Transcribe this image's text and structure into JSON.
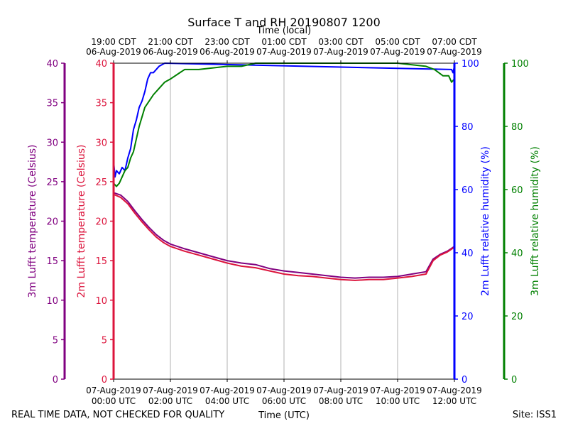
{
  "chart_data": {
    "type": "line",
    "title": "Surface T and RH 20190807 1200",
    "top_xlabel": "Time (local)",
    "xlabel": "Time (UTC)",
    "footer_left": "REAL TIME DATA, NOT CHECKED FOR QUALITY",
    "footer_right": "Site: ISS1",
    "xlim": [
      0,
      12
    ],
    "top_ticks": [
      {
        "x": 0,
        "line1": "19:00 CDT",
        "line2": "06-Aug-2019"
      },
      {
        "x": 2,
        "line1": "21:00 CDT",
        "line2": "06-Aug-2019"
      },
      {
        "x": 4,
        "line1": "23:00 CDT",
        "line2": "06-Aug-2019"
      },
      {
        "x": 6,
        "line1": "01:00 CDT",
        "line2": "07-Aug-2019"
      },
      {
        "x": 8,
        "line1": "03:00 CDT",
        "line2": "07-Aug-2019"
      },
      {
        "x": 10,
        "line1": "05:00 CDT",
        "line2": "07-Aug-2019"
      },
      {
        "x": 12,
        "line1": "07:00 CDT",
        "line2": "07-Aug-2019"
      }
    ],
    "bottom_ticks": [
      {
        "x": 0,
        "line1": "07-Aug-2019",
        "line2": "00:00 UTC"
      },
      {
        "x": 2,
        "line1": "07-Aug-2019",
        "line2": "02:00 UTC"
      },
      {
        "x": 4,
        "line1": "07-Aug-2019",
        "line2": "04:00 UTC"
      },
      {
        "x": 6,
        "line1": "07-Aug-2019",
        "line2": "06:00 UTC"
      },
      {
        "x": 8,
        "line1": "07-Aug-2019",
        "line2": "08:00 UTC"
      },
      {
        "x": 10,
        "line1": "07-Aug-2019",
        "line2": "10:00 UTC"
      },
      {
        "x": 12,
        "line1": "07-Aug-2019",
        "line2": "12:00 UTC"
      }
    ],
    "axes": {
      "t3m": {
        "label": "3m Lufft temperature (Celsius)",
        "ylim": [
          0,
          40
        ],
        "ticks": [
          0,
          5,
          10,
          15,
          20,
          25,
          30,
          35,
          40
        ],
        "color": "#800080"
      },
      "t2m": {
        "label": "2m Lufft temperature (Celsius)",
        "ylim": [
          0,
          40
        ],
        "ticks": [
          0,
          5,
          10,
          15,
          20,
          25,
          30,
          35,
          40
        ],
        "color": "#dc143c"
      },
      "rh2m": {
        "label": "2m Lufft relative humidity (%)",
        "ylim": [
          0,
          100
        ],
        "ticks": [
          0,
          20,
          40,
          60,
          80,
          100
        ],
        "color": "#0000ff"
      },
      "rh3m": {
        "label": "3m Lufft relative humidity (%)",
        "ylim": [
          0,
          100
        ],
        "ticks": [
          0,
          20,
          40,
          60,
          80,
          100
        ],
        "color": "#008000"
      }
    },
    "series": [
      {
        "name": "3m Lufft temperature",
        "axis": "t3m",
        "color": "#800080",
        "x": [
          0,
          0.25,
          0.5,
          0.75,
          1,
          1.25,
          1.5,
          1.75,
          2,
          2.5,
          3,
          3.5,
          4,
          4.5,
          5,
          5.5,
          6,
          6.5,
          7,
          7.5,
          8,
          8.5,
          9,
          9.5,
          10,
          10.5,
          11,
          11.25,
          11.5,
          11.75,
          12
        ],
        "y": [
          23.6,
          23.3,
          22.5,
          21.3,
          20.2,
          19.2,
          18.3,
          17.6,
          17.1,
          16.5,
          16.0,
          15.5,
          15.0,
          14.7,
          14.5,
          14.0,
          13.7,
          13.5,
          13.3,
          13.1,
          12.9,
          12.8,
          12.9,
          12.9,
          13.0,
          13.3,
          13.6,
          15.2,
          15.8,
          16.2,
          16.8
        ]
      },
      {
        "name": "2m Lufft temperature",
        "axis": "t2m",
        "color": "#dc143c",
        "x": [
          0,
          0.25,
          0.5,
          0.75,
          1,
          1.25,
          1.5,
          1.75,
          2,
          2.5,
          3,
          3.5,
          4,
          4.5,
          5,
          5.5,
          6,
          6.5,
          7,
          7.5,
          8,
          8.5,
          9,
          9.5,
          10,
          10.5,
          11,
          11.25,
          11.5,
          11.75,
          12
        ],
        "y": [
          23.4,
          23.0,
          22.2,
          21.0,
          19.9,
          18.9,
          18.0,
          17.3,
          16.8,
          16.2,
          15.7,
          15.2,
          14.7,
          14.3,
          14.1,
          13.7,
          13.3,
          13.1,
          13.0,
          12.8,
          12.6,
          12.5,
          12.6,
          12.6,
          12.8,
          13.0,
          13.3,
          15.0,
          15.7,
          16.1,
          16.7
        ]
      },
      {
        "name": "2m Lufft relative humidity",
        "axis": "rh2m",
        "color": "#0000ff",
        "x": [
          0,
          0.05,
          0.1,
          0.2,
          0.3,
          0.4,
          0.5,
          0.6,
          0.7,
          0.8,
          0.9,
          1.0,
          1.1,
          1.2,
          1.3,
          1.4,
          1.5,
          1.6,
          1.8,
          11.9,
          11.95,
          12
        ],
        "y": [
          69,
          64,
          66,
          65,
          67,
          66,
          70,
          73,
          79,
          82,
          86,
          88,
          91,
          95,
          97,
          97,
          98,
          99,
          100,
          98,
          97,
          99
        ]
      },
      {
        "name": "3m Lufft relative humidity",
        "axis": "rh3m",
        "color": "#008000",
        "x": [
          0,
          0.1,
          0.2,
          0.3,
          0.4,
          0.5,
          0.6,
          0.7,
          0.8,
          0.9,
          1.0,
          1.1,
          1.25,
          1.4,
          1.6,
          1.8,
          2.0,
          2.5,
          3.0,
          4.0,
          4.5,
          5.0,
          6.0,
          7.0,
          8.0,
          9.0,
          10.0,
          11.0,
          11.3,
          11.6,
          11.8,
          11.9,
          12.0
        ],
        "y": [
          62,
          61,
          62,
          64,
          66,
          67,
          70,
          72,
          76,
          80,
          83,
          86,
          88,
          90,
          92,
          94,
          95,
          98,
          98,
          99,
          99,
          100,
          100,
          100,
          100,
          100,
          100,
          99,
          98,
          96,
          96,
          94,
          95
        ]
      }
    ]
  }
}
